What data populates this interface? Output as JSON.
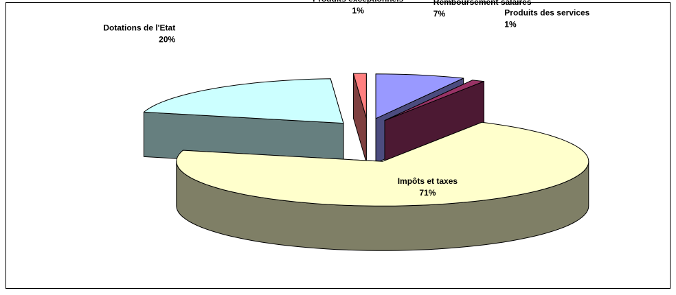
{
  "chart_data": {
    "type": "pie3d",
    "categories": [
      "Remboursement salaires",
      "Produits des services",
      "Impôts et taxes",
      "Dotations de l'Etat",
      "Produits exceptionnels"
    ],
    "values": [
      7,
      1,
      71,
      20,
      1
    ],
    "value_labels": [
      "7%",
      "1%",
      "71%",
      "20%",
      "1%"
    ],
    "colors": [
      "#9999ff",
      "#993366",
      "#ffffcc",
      "#ccffff",
      "#ff8080"
    ]
  }
}
